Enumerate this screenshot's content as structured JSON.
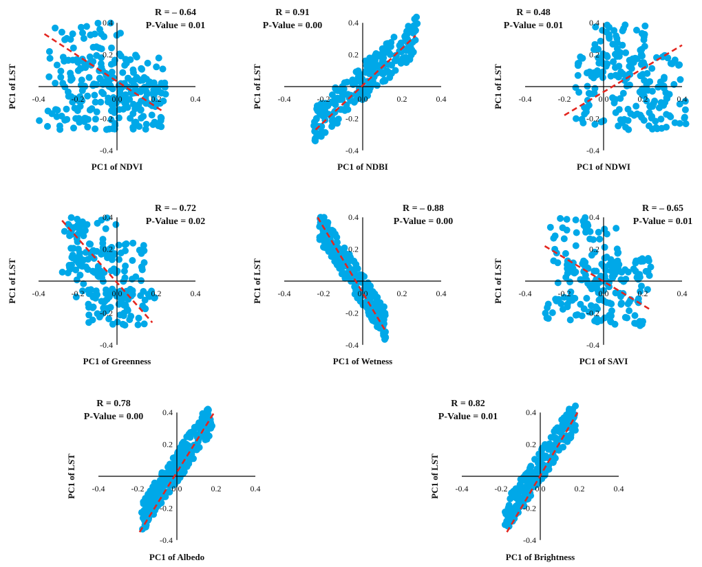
{
  "colors": {
    "points": "#00a8e8",
    "trend": "#e3261f",
    "axes": "#000000",
    "text": "#111111"
  },
  "ticks": {
    "labels": [
      "-0.4",
      "-0.2",
      "0.0",
      "0.2",
      "0.4"
    ],
    "values": [
      -0.4,
      -0.2,
      0.0,
      0.2,
      0.4
    ]
  },
  "chart_data": [
    {
      "type": "scatter",
      "id": "ndvi",
      "xlabel": "PC1 of NDVI",
      "ylabel": "PC1 of LST",
      "r_label": "R = – 0.64",
      "p_label": "P-Value = 0.01",
      "xlim": [
        -0.4,
        0.4
      ],
      "ylim": [
        -0.4,
        0.4
      ],
      "clusters": [
        {
          "x": [
            -0.35,
            0.05
          ],
          "y": [
            -0.1,
            0.4
          ]
        },
        {
          "x": [
            -0.3,
            0.25
          ],
          "y": [
            -0.1,
            0.2
          ]
        },
        {
          "x": [
            -0.05,
            0.25
          ],
          "y": [
            -0.12,
            0.06
          ]
        },
        {
          "x": [
            -0.4,
            0.25
          ],
          "y": [
            -0.27,
            -0.12
          ]
        }
      ],
      "trend": {
        "x": [
          -0.37,
          0.24
        ],
        "y": [
          0.33,
          -0.16
        ]
      }
    },
    {
      "type": "scatter",
      "id": "ndbi",
      "xlabel": "PC1 of NDBI",
      "ylabel": "PC1 of LST",
      "r_label": "R =  0.91",
      "p_label": "P-Value = 0.00",
      "xlim": [
        -0.4,
        0.4
      ],
      "ylim": [
        -0.4,
        0.4
      ],
      "band": {
        "x": [
          -0.25,
          0.28
        ],
        "y_center": [
          -0.24,
          0.33
        ],
        "width": 0.12
      },
      "trend": {
        "x": [
          -0.24,
          0.27
        ],
        "y": [
          -0.27,
          0.32
        ]
      }
    },
    {
      "type": "scatter",
      "id": "ndwi",
      "xlabel": "PC1 of NDWI",
      "ylabel": "PC1 of LST",
      "r_label": "R = 0.48",
      "p_label": "P-Value = 0.01",
      "xlim": [
        -0.4,
        0.4
      ],
      "ylim": [
        -0.4,
        0.4
      ],
      "clusters": [
        {
          "x": [
            -0.05,
            0.22
          ],
          "y": [
            0.05,
            0.4
          ]
        },
        {
          "x": [
            -0.15,
            0.4
          ],
          "y": [
            -0.05,
            0.2
          ]
        },
        {
          "x": [
            -0.15,
            0.42
          ],
          "y": [
            -0.27,
            -0.05
          ]
        }
      ],
      "trend": {
        "x": [
          -0.2,
          0.4
        ],
        "y": [
          -0.18,
          0.26
        ]
      }
    },
    {
      "type": "scatter",
      "id": "greenness",
      "xlabel": "PC1 of Greenness",
      "ylabel": "PC1 of LST",
      "r_label": "R = – 0.72",
      "p_label": "P-Value = 0.02",
      "xlim": [
        -0.4,
        0.4
      ],
      "ylim": [
        -0.4,
        0.4
      ],
      "clusters": [
        {
          "x": [
            -0.28,
            0.0
          ],
          "y": [
            0.05,
            0.4
          ]
        },
        {
          "x": [
            -0.25,
            0.15
          ],
          "y": [
            -0.1,
            0.25
          ]
        },
        {
          "x": [
            -0.15,
            0.2
          ],
          "y": [
            -0.28,
            -0.05
          ]
        }
      ],
      "trend": {
        "x": [
          -0.28,
          0.18
        ],
        "y": [
          0.38,
          -0.26
        ]
      }
    },
    {
      "type": "scatter",
      "id": "wetness",
      "xlabel": "PC1 of Wetness",
      "ylabel": "PC1 of LST",
      "r_label": "R = – 0.88",
      "p_label": "P-Value = 0.00",
      "xlim": [
        -0.4,
        0.4
      ],
      "ylim": [
        -0.4,
        0.4
      ],
      "band": {
        "x": [
          -0.22,
          0.12
        ],
        "y_center": [
          0.35,
          -0.28
        ],
        "width": 0.1
      },
      "trend": {
        "x": [
          -0.23,
          0.12
        ],
        "y": [
          0.4,
          -0.32
        ]
      }
    },
    {
      "type": "scatter",
      "id": "savi",
      "xlabel": "PC1 of SAVI",
      "ylabel": "PC1 of LST",
      "r_label": "R = – 0.65",
      "p_label": "P-Value = 0.01",
      "xlim": [
        -0.4,
        0.4
      ],
      "ylim": [
        -0.4,
        0.4
      ],
      "clusters": [
        {
          "x": [
            -0.28,
            0.08
          ],
          "y": [
            -0.05,
            0.4
          ]
        },
        {
          "x": [
            -0.2,
            0.25
          ],
          "y": [
            -0.1,
            0.15
          ]
        },
        {
          "x": [
            -0.3,
            0.2
          ],
          "y": [
            -0.28,
            -0.1
          ]
        }
      ],
      "trend": {
        "x": [
          -0.3,
          0.24
        ],
        "y": [
          0.22,
          -0.18
        ]
      }
    },
    {
      "type": "scatter",
      "id": "albedo",
      "xlabel": "PC1 of Albedo",
      "ylabel": "PC1 of LST",
      "r_label": "R = 0.78",
      "p_label": "P-Value = 0.00",
      "xlim": [
        -0.4,
        0.4
      ],
      "ylim": [
        -0.4,
        0.4
      ],
      "band": {
        "x": [
          -0.18,
          0.18
        ],
        "y_center": [
          -0.26,
          0.38
        ],
        "width": 0.1
      },
      "trend": {
        "x": [
          -0.19,
          0.19
        ],
        "y": [
          -0.35,
          0.4
        ]
      }
    },
    {
      "type": "scatter",
      "id": "brightness",
      "xlabel": "PC1 of Brightness",
      "ylabel": "PC1 of LST",
      "r_label": "R = 0.82",
      "p_label": "P-Value = 0.01",
      "xlim": [
        -0.4,
        0.4
      ],
      "ylim": [
        -0.4,
        0.4
      ],
      "band": {
        "x": [
          -0.18,
          0.18
        ],
        "y_center": [
          -0.26,
          0.38
        ],
        "width": 0.1
      },
      "trend": {
        "x": [
          -0.17,
          0.19
        ],
        "y": [
          -0.35,
          0.4
        ]
      }
    }
  ]
}
